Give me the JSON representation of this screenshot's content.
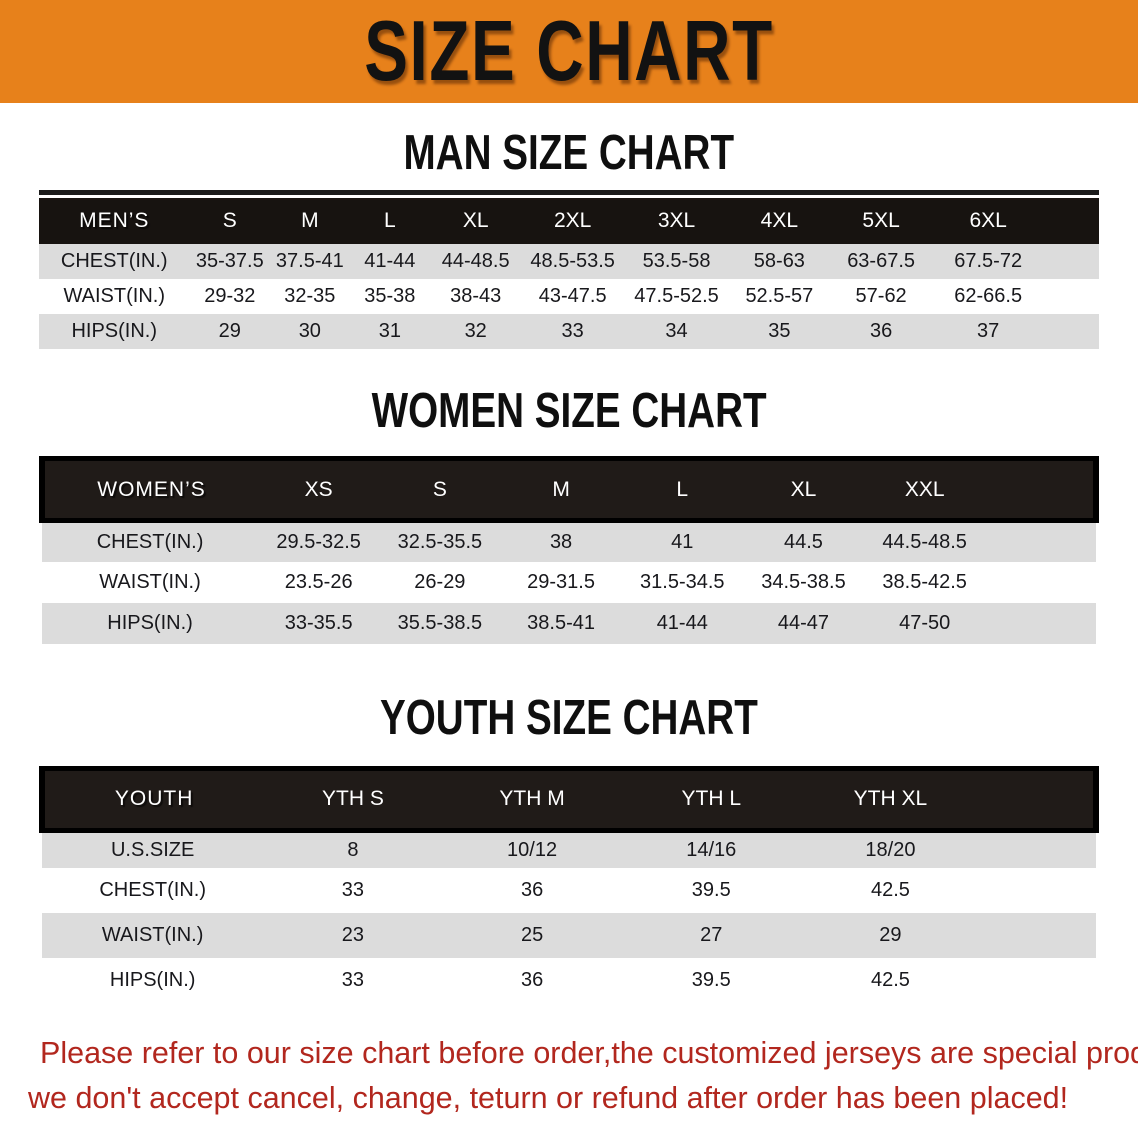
{
  "banner": {
    "title": "SIZE CHART"
  },
  "sections": {
    "men": {
      "title": "MAN SIZE CHART",
      "group_label": "MEN’S",
      "columns": [
        "S",
        "M",
        "L",
        "XL",
        "2XL",
        "3XL",
        "4XL",
        "5XL",
        "6XL"
      ],
      "rows": [
        {
          "label": "CHEST(IN.)",
          "values": [
            "35-37.5",
            "37.5-41",
            "41-44",
            "44-48.5",
            "48.5-53.5",
            "53.5-58",
            "58-63",
            "63-67.5",
            "67.5-72"
          ]
        },
        {
          "label": "WAIST(IN.)",
          "values": [
            "29-32",
            "32-35",
            "35-38",
            "38-43",
            "43-47.5",
            "47.5-52.5",
            "52.5-57",
            "57-62",
            "62-66.5"
          ]
        },
        {
          "label": "HIPS(IN.)",
          "values": [
            "29",
            "30",
            "31",
            "32",
            "33",
            "34",
            "35",
            "36",
            "37"
          ]
        }
      ]
    },
    "women": {
      "title": "WOMEN SIZE CHART",
      "group_label": "WOMEN’S",
      "columns": [
        "XS",
        "S",
        "M",
        "L",
        "XL",
        "XXL"
      ],
      "rows": [
        {
          "label": "CHEST(IN.)",
          "values": [
            "29.5-32.5",
            "32.5-35.5",
            "38",
            "41",
            "44.5",
            "44.5-48.5"
          ]
        },
        {
          "label": "WAIST(IN.)",
          "values": [
            "23.5-26",
            "26-29",
            "29-31.5",
            "31.5-34.5",
            "34.5-38.5",
            "38.5-42.5"
          ]
        },
        {
          "label": "HIPS(IN.)",
          "values": [
            "33-35.5",
            "35.5-38.5",
            "38.5-41",
            "41-44",
            "44-47",
            "47-50"
          ]
        }
      ]
    },
    "youth": {
      "title": "YOUTH SIZE CHART",
      "group_label": "YOUTH",
      "columns": [
        "YTH S",
        "YTH M",
        "YTH L",
        "YTH XL"
      ],
      "rows": [
        {
          "label": "U.S.SIZE",
          "values": [
            "8",
            "10/12",
            "14/16",
            "18/20"
          ]
        },
        {
          "label": "CHEST(IN.)",
          "values": [
            "33",
            "36",
            "39.5",
            "42.5"
          ]
        },
        {
          "label": "WAIST(IN.)",
          "values": [
            "23",
            "25",
            "27",
            "29"
          ]
        },
        {
          "label": "HIPS(IN.)",
          "values": [
            "33",
            "36",
            "39.5",
            "42.5"
          ]
        }
      ]
    }
  },
  "footer": {
    "line1": "Please refer to our size chart before order,the customized jerseys are special products,",
    "line2": "we don't accept cancel, change, teturn or refund after order has been placed!"
  },
  "colors": {
    "banner_orange": "#e7811b",
    "header_black": "#171310",
    "stripe_gray": "#dcdcdc",
    "notice_red": "#b2271e"
  }
}
